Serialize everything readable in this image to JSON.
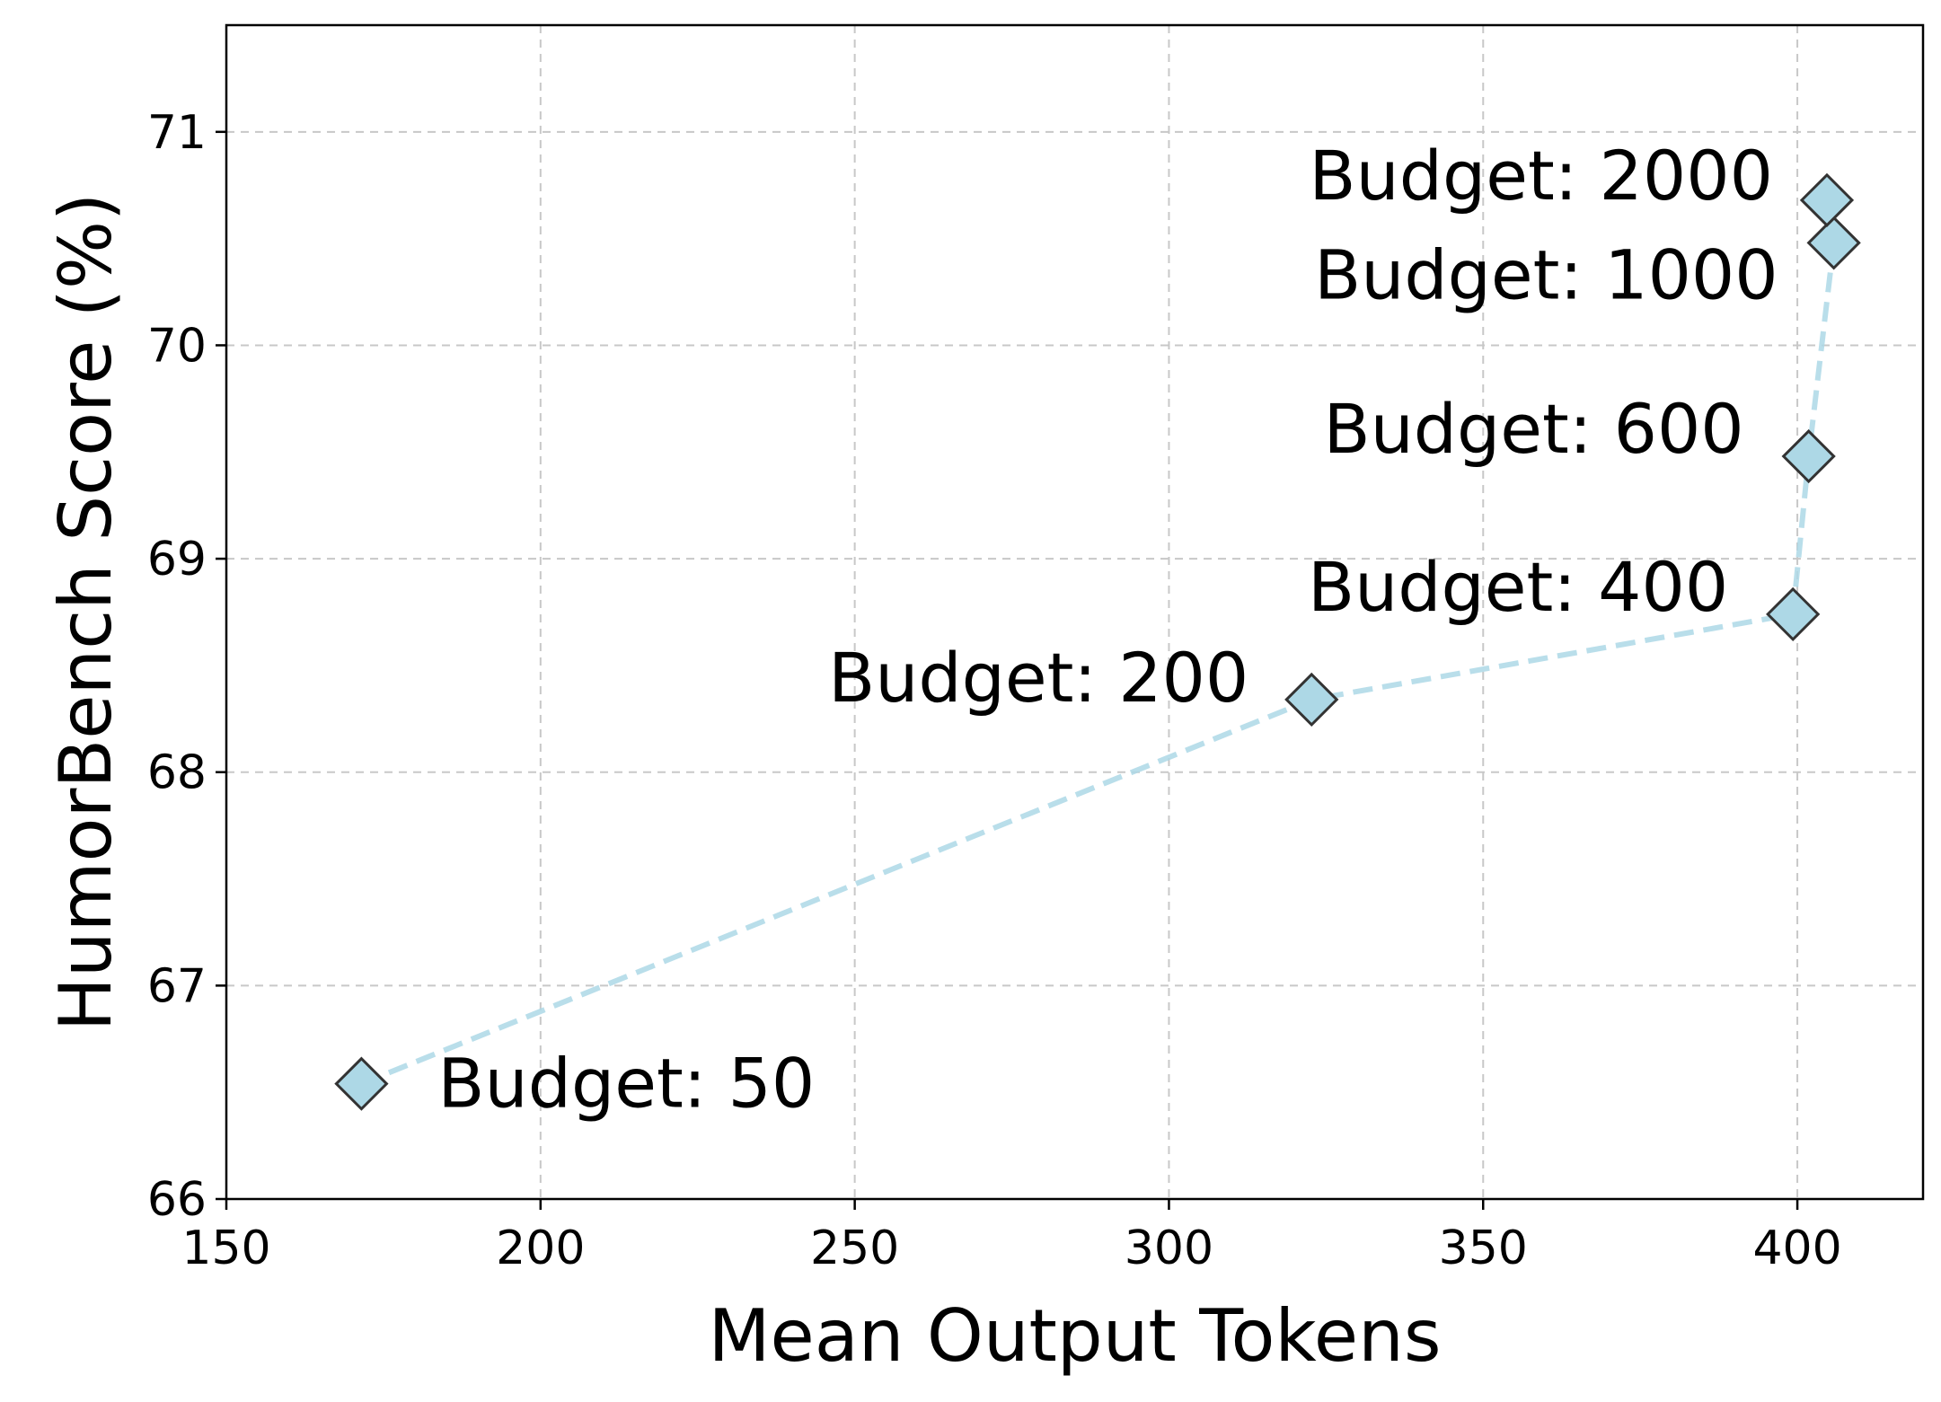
{
  "chart_data": {
    "type": "line",
    "xlabel": "Mean Output Tokens",
    "ylabel": "HumorBench Score (%)",
    "xlim": [
      150,
      420
    ],
    "ylim": [
      66,
      71.5
    ],
    "xticks": [
      150,
      200,
      250,
      300,
      350,
      400
    ],
    "yticks": [
      66,
      67,
      68,
      69,
      70,
      71
    ],
    "grid": true,
    "series": [
      {
        "color": "#add8e6",
        "line_style": "dashed",
        "marker": "diamond",
        "marker_edge_color": "#333333",
        "points": [
          {
            "x": 171.5,
            "y": 66.54,
            "label": "Budget: 50"
          },
          {
            "x": 322.7,
            "y": 68.34,
            "label": "Budget: 200"
          },
          {
            "x": 399.3,
            "y": 68.74,
            "label": "Budget: 400"
          },
          {
            "x": 401.8,
            "y": 69.48,
            "label": "Budget: 600"
          },
          {
            "x": 405.8,
            "y": 70.48,
            "label": "Budget: 1000"
          },
          {
            "x": 404.7,
            "y": 70.68,
            "label": "Budget: 2000"
          }
        ]
      }
    ]
  }
}
